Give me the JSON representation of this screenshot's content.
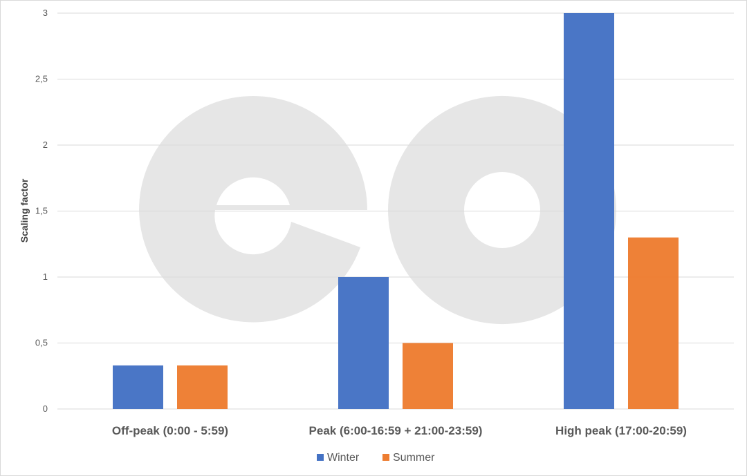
{
  "chart_data": {
    "type": "bar",
    "title": "",
    "xlabel": "",
    "ylabel": "Scaling factor",
    "categories": [
      "Off-peak (0:00 - 5:59)",
      "Peak (6:00-16:59 + 21:00-23:59)",
      "High peak (17:00-20:59)"
    ],
    "series": [
      {
        "name": "Winter",
        "color": "#4472C4",
        "values": [
          0.33,
          1,
          3
        ]
      },
      {
        "name": "Summer",
        "color": "#ED7D31",
        "values": [
          0.33,
          0.5,
          1.3
        ]
      }
    ],
    "ylim": [
      0,
      3
    ],
    "yticks": [
      0,
      0.5,
      1,
      1.5,
      2,
      2.5,
      3
    ],
    "ytick_labels": [
      "0",
      "0,5",
      "1",
      "1,5",
      "2",
      "2,5",
      "3"
    ],
    "grid": true,
    "legend_position": "bottom"
  },
  "watermark": {
    "icon": "eo-logo-watermark",
    "color": "#e6e6e6"
  }
}
